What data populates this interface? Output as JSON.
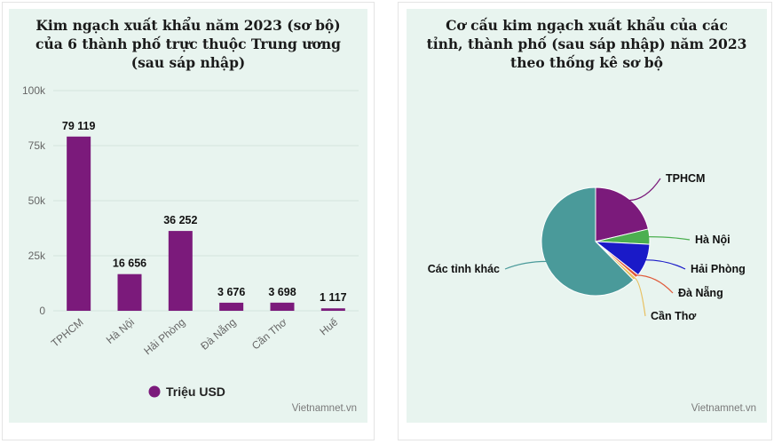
{
  "charts": {
    "bar": {
      "title_lines": [
        "Kim ngạch xuất khẩu năm 2023 (sơ bộ)",
        "của 6 thành phố trực thuộc Trung ương",
        "(sau sáp nhập)"
      ],
      "credit": "Vietnamnet.vn"
    },
    "pie": {
      "title_lines": [
        "Cơ cấu kim ngạch xuất khẩu của các",
        "tỉnh, thành phố (sau sáp nhập) năm 2023",
        "theo thống kê sơ bộ"
      ],
      "credit": "Vietnamnet.vn"
    }
  },
  "chart_data": [
    {
      "type": "bar",
      "title": "Kim ngạch xuất khẩu năm 2023 (sơ bộ) của 6 thành phố trực thuộc Trung ương (sau sáp nhập)",
      "categories": [
        "TPHCM",
        "Hà Nội",
        "Hải Phòng",
        "Đà Nẵng",
        "Cần Thơ",
        "Huế"
      ],
      "series": [
        {
          "name": "Triệu USD",
          "values": [
            79119,
            16656,
            36252,
            3676,
            3698,
            1117
          ],
          "color": "#7b1a7b"
        }
      ],
      "data_labels": [
        "79 119",
        "16 656",
        "36 252",
        "3 676",
        "3 698",
        "1 117"
      ],
      "yticks": [
        "0",
        "25k",
        "50k",
        "75k",
        "100k"
      ],
      "ylim": [
        0,
        100000
      ],
      "grid": true,
      "legend": "bottom"
    },
    {
      "type": "pie",
      "title": "Cơ cấu kim ngạch xuất khẩu của các tỉnh, thành phố (sau sáp nhập) năm 2023 theo thống kê sơ bộ",
      "slices": [
        {
          "label": "TPHCM",
          "value": 21.3,
          "color": "#7b1a7b"
        },
        {
          "label": "Hà Nội",
          "value": 4.5,
          "color": "#4caf50"
        },
        {
          "label": "Hải Phòng",
          "value": 9.8,
          "color": "#1a1ac8"
        },
        {
          "label": "Đà Nẵng",
          "value": 1.0,
          "color": "#e05a3a"
        },
        {
          "label": "Cần Thơ",
          "value": 1.0,
          "color": "#e8c060"
        },
        {
          "label": "Các tỉnh khác",
          "value": 62.4,
          "color": "#4a9a9a"
        }
      ]
    }
  ]
}
